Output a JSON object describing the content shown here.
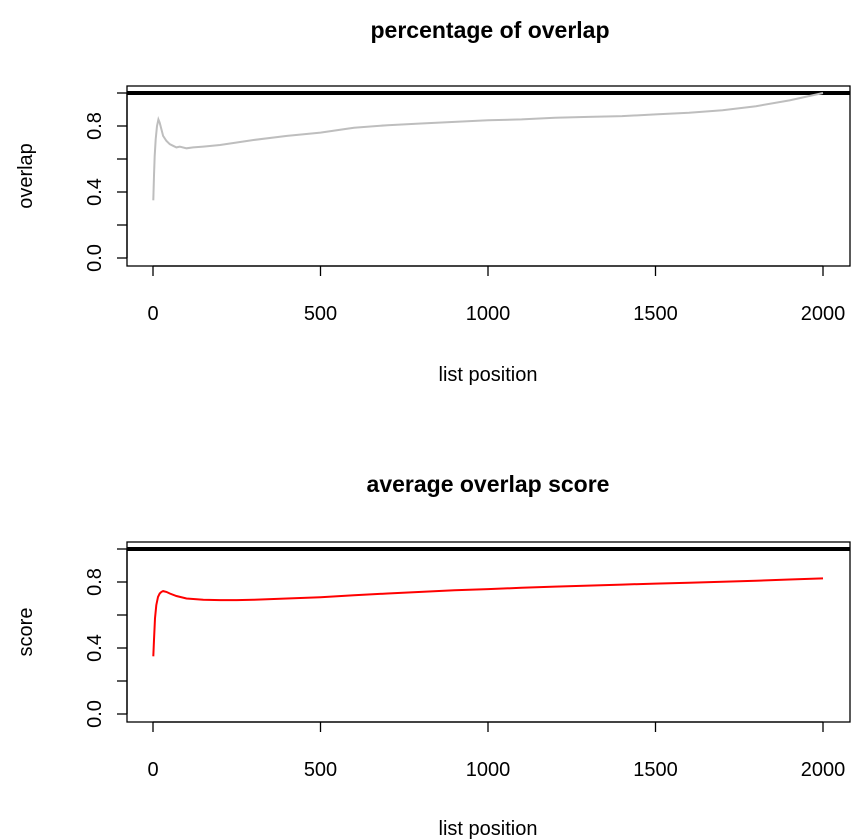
{
  "chart_data": [
    {
      "type": "line",
      "title": "percentage of  overlap",
      "xlabel": "list position",
      "ylabel": "overlap",
      "xlim": [
        0,
        2000
      ],
      "ylim": [
        0,
        1
      ],
      "x_ticks": [
        "0",
        "500",
        "1000",
        "1500",
        "2000"
      ],
      "y_ticks": [
        "0.0",
        "0.4",
        "0.8"
      ],
      "grid": false,
      "reference_line": 1.0,
      "reference_color": "#000000",
      "series_color": "#bebebe",
      "series": [
        {
          "x": [
            1,
            3,
            5,
            8,
            12,
            16,
            20,
            25,
            30,
            40,
            50,
            60,
            70,
            80,
            100,
            120,
            150,
            200,
            250,
            300,
            400,
            500,
            600,
            700,
            800,
            900,
            1000,
            1100,
            1200,
            1300,
            1400,
            1500,
            1600,
            1700,
            1800,
            1900,
            2000
          ],
          "y": [
            0.35,
            0.5,
            0.62,
            0.72,
            0.8,
            0.84,
            0.82,
            0.78,
            0.74,
            0.71,
            0.69,
            0.68,
            0.67,
            0.675,
            0.665,
            0.67,
            0.675,
            0.685,
            0.7,
            0.715,
            0.74,
            0.76,
            0.79,
            0.805,
            0.815,
            0.825,
            0.835,
            0.84,
            0.85,
            0.855,
            0.86,
            0.87,
            0.88,
            0.895,
            0.92,
            0.955,
            1.0
          ]
        }
      ]
    },
    {
      "type": "line",
      "title": "average overlap score",
      "xlabel": "list position",
      "ylabel": "score",
      "xlim": [
        0,
        2000
      ],
      "ylim": [
        0,
        1
      ],
      "x_ticks": [
        "0",
        "500",
        "1000",
        "1500",
        "2000"
      ],
      "y_ticks": [
        "0.0",
        "0.4",
        "0.8"
      ],
      "grid": false,
      "reference_line": 1.0,
      "reference_color": "#000000",
      "series_color": "#ff0000",
      "series": [
        {
          "x": [
            1,
            3,
            6,
            10,
            15,
            20,
            25,
            30,
            40,
            50,
            70,
            100,
            150,
            200,
            250,
            300,
            400,
            500,
            600,
            700,
            800,
            900,
            1000,
            1100,
            1200,
            1300,
            1400,
            1500,
            1600,
            1700,
            1800,
            1900,
            2000
          ],
          "y": [
            0.35,
            0.45,
            0.58,
            0.66,
            0.71,
            0.73,
            0.74,
            0.745,
            0.74,
            0.73,
            0.715,
            0.7,
            0.693,
            0.69,
            0.69,
            0.692,
            0.7,
            0.708,
            0.72,
            0.73,
            0.74,
            0.75,
            0.757,
            0.765,
            0.772,
            0.778,
            0.784,
            0.79,
            0.796,
            0.802,
            0.808,
            0.815,
            0.822
          ]
        }
      ]
    }
  ]
}
